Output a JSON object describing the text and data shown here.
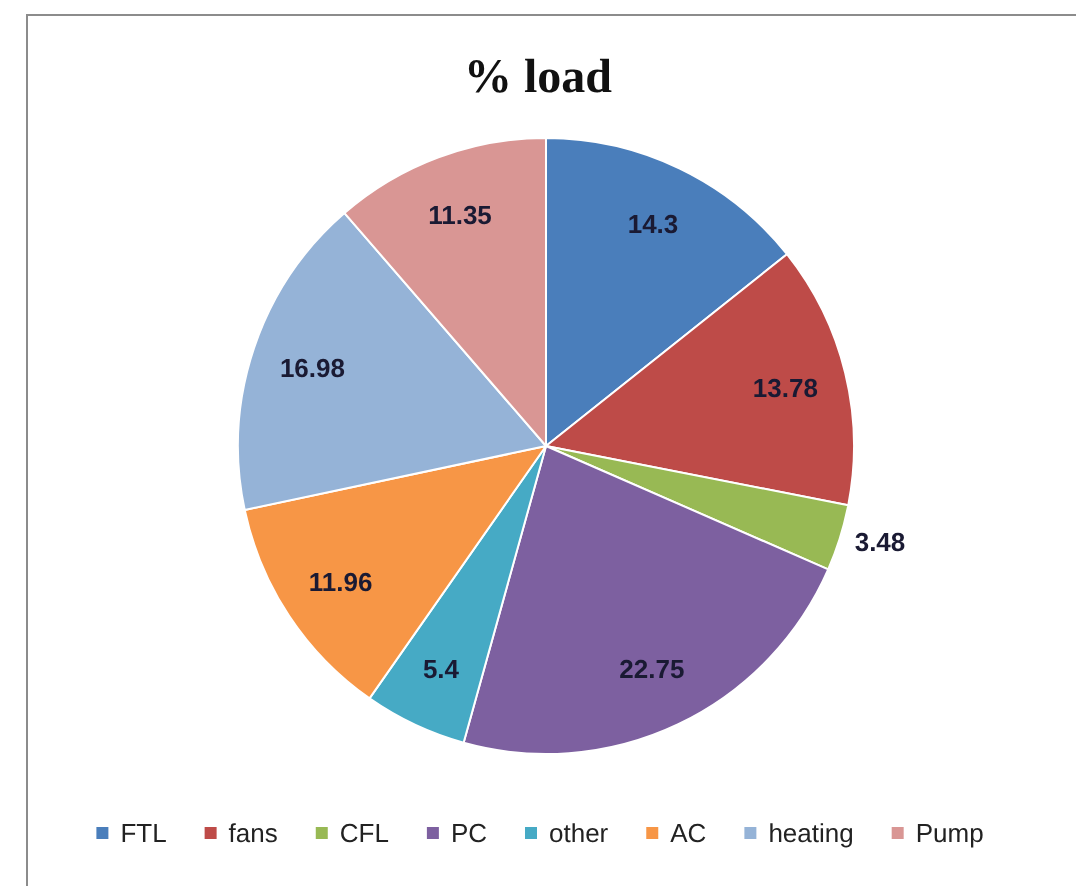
{
  "chart_data": {
    "type": "pie",
    "title": "% load",
    "categories": [
      "FTL",
      "fans",
      "CFL",
      "PC",
      "other",
      "AC",
      "heating",
      "Pump"
    ],
    "values": [
      14.3,
      13.78,
      3.48,
      22.75,
      5.4,
      11.96,
      16.98,
      11.35
    ],
    "colors": [
      "#4a7ebb",
      "#be4b48",
      "#98b954",
      "#7d60a0",
      "#46aac5",
      "#f79646",
      "#95b3d7",
      "#d99694"
    ],
    "data_labels": true,
    "legend": "bottom"
  }
}
